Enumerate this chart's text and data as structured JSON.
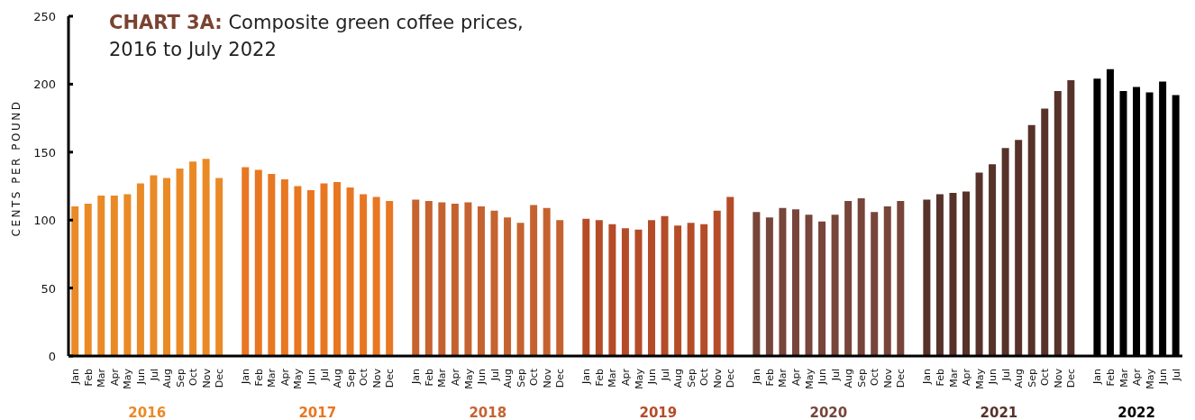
{
  "chart_data": {
    "type": "bar",
    "title": "CHART 3A:",
    "subtitle": "Composite green coffee prices, 2016 to July 2022",
    "ylabel": "CENTS PER POUND",
    "categories": [
      "Jan",
      "Feb",
      "Mar",
      "Apr",
      "May",
      "Jun",
      "Jul",
      "Aug",
      "Sep",
      "Oct",
      "Nov",
      "Dec",
      "Jan",
      "Feb",
      "Mar",
      "Apr",
      "May",
      "Jun",
      "Jul",
      "Aug",
      "Sep",
      "Oct",
      "Nov",
      "Dec",
      "Jan",
      "Feb",
      "Mar",
      "Apr",
      "May",
      "Jun",
      "Jul",
      "Aug",
      "Sep",
      "Oct",
      "Nov",
      "Dec",
      "Jan",
      "Feb",
      "Mar",
      "Apr",
      "May",
      "Jun",
      "Jul",
      "Aug",
      "Sep",
      "Oct",
      "Nov",
      "Dec",
      "Jan",
      "Feb",
      "Mar",
      "Apr",
      "May",
      "Jun",
      "Jul",
      "Aug",
      "Sep",
      "Oct",
      "Nov",
      "Dec",
      "Jan",
      "Feb",
      "Mar",
      "Apr",
      "May",
      "Jun",
      "Jul",
      "Aug",
      "Sep",
      "Oct",
      "Nov",
      "Dec",
      "Jan",
      "Feb",
      "Mar",
      "Apr",
      "May",
      "Jun",
      "Jul"
    ],
    "series": [
      {
        "name": "2016",
        "color": "#e98a26",
        "values": [
          110,
          112,
          118,
          118,
          119,
          127,
          133,
          131,
          138,
          143,
          145,
          131,
          null,
          null,
          null,
          null,
          null,
          null,
          null,
          null,
          null,
          null,
          null,
          null,
          null,
          null,
          null,
          null,
          null,
          null,
          null,
          null,
          null,
          null,
          null,
          null,
          null,
          null,
          null,
          null,
          null,
          null,
          null,
          null,
          null,
          null,
          null,
          null,
          null,
          null,
          null,
          null,
          null,
          null,
          null,
          null,
          null,
          null,
          null,
          null,
          null,
          null,
          null,
          null,
          null,
          null,
          null,
          null,
          null,
          null,
          null,
          null,
          null,
          null,
          null,
          null,
          null,
          null,
          null
        ]
      },
      {
        "name": "2017",
        "color": "#e87722",
        "values": [
          null,
          null,
          null,
          null,
          null,
          null,
          null,
          null,
          null,
          null,
          null,
          null,
          139,
          137,
          134,
          130,
          125,
          122,
          127,
          128,
          124,
          119,
          117,
          114,
          null,
          null,
          null,
          null,
          null,
          null,
          null,
          null,
          null,
          null,
          null,
          null,
          null,
          null,
          null,
          null,
          null,
          null,
          null,
          null,
          null,
          null,
          null,
          null,
          null,
          null,
          null,
          null,
          null,
          null,
          null,
          null,
          null,
          null,
          null,
          null,
          null,
          null,
          null,
          null,
          null,
          null,
          null,
          null,
          null,
          null,
          null,
          null,
          null,
          null,
          null,
          null,
          null,
          null,
          null
        ]
      },
      {
        "name": "2018",
        "color": "#c56330",
        "values": [
          null,
          null,
          null,
          null,
          null,
          null,
          null,
          null,
          null,
          null,
          null,
          null,
          null,
          null,
          null,
          null,
          null,
          null,
          null,
          null,
          null,
          null,
          null,
          null,
          115,
          114,
          113,
          112,
          113,
          110,
          107,
          102,
          98,
          111,
          109,
          100,
          null,
          null,
          null,
          null,
          null,
          null,
          null,
          null,
          null,
          null,
          null,
          null,
          null,
          null,
          null,
          null,
          null,
          null,
          null,
          null,
          null,
          null,
          null,
          null,
          null,
          null,
          null,
          null,
          null,
          null,
          null,
          null,
          null,
          null,
          null,
          null,
          null,
          null,
          null,
          null,
          null,
          null,
          null
        ]
      },
      {
        "name": "2019",
        "color": "#b54c28",
        "values": [
          null,
          null,
          null,
          null,
          null,
          null,
          null,
          null,
          null,
          null,
          null,
          null,
          null,
          null,
          null,
          null,
          null,
          null,
          null,
          null,
          null,
          null,
          null,
          null,
          null,
          null,
          null,
          null,
          null,
          null,
          null,
          null,
          null,
          null,
          null,
          null,
          101,
          100,
          97,
          94,
          93,
          100,
          103,
          96,
          98,
          97,
          107,
          117,
          null,
          null,
          null,
          null,
          null,
          null,
          null,
          null,
          null,
          null,
          null,
          null,
          null,
          null,
          null,
          null,
          null,
          null,
          null,
          null,
          null,
          null,
          null,
          null,
          null,
          null,
          null,
          null,
          null,
          null,
          null
        ]
      },
      {
        "name": "2020",
        "color": "#77453a",
        "values": [
          null,
          null,
          null,
          null,
          null,
          null,
          null,
          null,
          null,
          null,
          null,
          null,
          null,
          null,
          null,
          null,
          null,
          null,
          null,
          null,
          null,
          null,
          null,
          null,
          null,
          null,
          null,
          null,
          null,
          null,
          null,
          null,
          null,
          null,
          null,
          null,
          null,
          null,
          null,
          null,
          null,
          null,
          null,
          null,
          null,
          null,
          null,
          null,
          106,
          102,
          109,
          108,
          104,
          99,
          104,
          114,
          116,
          106,
          110,
          114,
          null,
          null,
          null,
          null,
          null,
          null,
          null,
          null,
          null,
          null,
          null,
          null,
          null,
          null,
          null,
          null,
          null,
          null,
          null
        ]
      },
      {
        "name": "2021",
        "color": "#57322a",
        "values": [
          null,
          null,
          null,
          null,
          null,
          null,
          null,
          null,
          null,
          null,
          null,
          null,
          null,
          null,
          null,
          null,
          null,
          null,
          null,
          null,
          null,
          null,
          null,
          null,
          null,
          null,
          null,
          null,
          null,
          null,
          null,
          null,
          null,
          null,
          null,
          null,
          null,
          null,
          null,
          null,
          null,
          null,
          null,
          null,
          null,
          null,
          null,
          null,
          null,
          null,
          null,
          null,
          null,
          null,
          null,
          null,
          null,
          null,
          null,
          null,
          115,
          119,
          120,
          121,
          135,
          141,
          153,
          159,
          170,
          182,
          195,
          203,
          null,
          null,
          null,
          null,
          null,
          null,
          null
        ]
      },
      {
        "name": "2022",
        "color": "#000000",
        "values": [
          null,
          null,
          null,
          null,
          null,
          null,
          null,
          null,
          null,
          null,
          null,
          null,
          null,
          null,
          null,
          null,
          null,
          null,
          null,
          null,
          null,
          null,
          null,
          null,
          null,
          null,
          null,
          null,
          null,
          null,
          null,
          null,
          null,
          null,
          null,
          null,
          null,
          null,
          null,
          null,
          null,
          null,
          null,
          null,
          null,
          null,
          null,
          null,
          null,
          null,
          null,
          null,
          null,
          null,
          null,
          null,
          null,
          null,
          null,
          null,
          null,
          null,
          null,
          null,
          null,
          null,
          null,
          null,
          null,
          null,
          null,
          null,
          204,
          211,
          195,
          198,
          194,
          202,
          192
        ]
      }
    ],
    "ylim": [
      0,
      250
    ],
    "yticks": [
      0,
      50,
      100,
      150,
      200,
      250
    ]
  }
}
